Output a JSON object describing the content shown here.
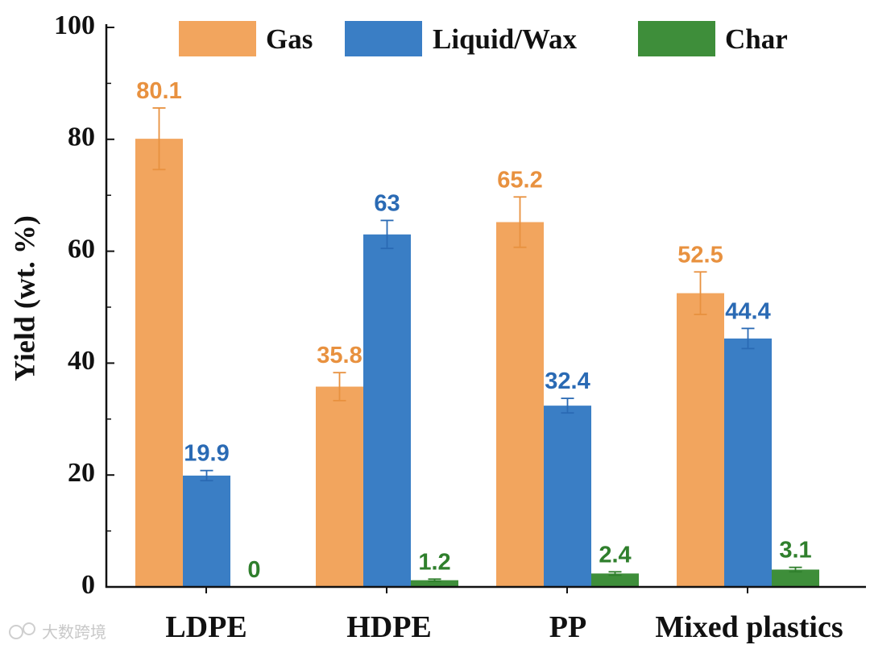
{
  "chart_data": {
    "type": "bar",
    "ylabel": "Yield (wt. %)",
    "xlabel": "",
    "ylim": [
      0,
      100
    ],
    "yticks": [
      0,
      20,
      40,
      60,
      80,
      100
    ],
    "categories": [
      "LDPE",
      "HDPE",
      "PP",
      "Mixed plastics"
    ],
    "legend_position": "top-right",
    "series": [
      {
        "name": "Gas",
        "color": "#f2a55e",
        "text_color": "#e8913f",
        "values": [
          80.1,
          35.8,
          65.2,
          52.5
        ],
        "labels": [
          "80.1",
          "35.8",
          "65.2",
          "52.5"
        ],
        "errors": [
          5.5,
          2.5,
          4.5,
          3.8
        ]
      },
      {
        "name": "Liquid/Wax",
        "color": "#3a7ec5",
        "text_color": "#2a6ab4",
        "values": [
          19.9,
          63,
          32.4,
          44.4
        ],
        "labels": [
          "19.9",
          "63",
          "32.4",
          "44.4"
        ],
        "errors": [
          0.9,
          2.5,
          1.3,
          1.8
        ]
      },
      {
        "name": "Char",
        "color": "#3e8e3a",
        "text_color": "#2f7f2c",
        "values": [
          0,
          1.2,
          2.4,
          3.1
        ],
        "labels": [
          "0",
          "1.2",
          "2.4",
          "3.1"
        ],
        "errors": [
          0,
          0.2,
          0.3,
          0.4
        ]
      }
    ]
  },
  "watermark": "大数跨境"
}
